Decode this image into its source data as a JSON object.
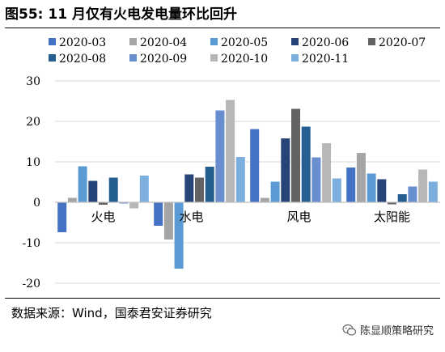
{
  "title": "图55: 11 月仅有火电发电量环比回升",
  "source": "数据来源：Wind，国泰君安证券研究",
  "watermark": "陈显顺策略研究",
  "colors": {
    "2020-03": "#4472C4",
    "2020-04": "#A5A5A5",
    "2020-05": "#5B9BD5",
    "2020-06": "#264478",
    "2020-07": "#636363",
    "2020-08": "#255E91",
    "2020-09": "#698ED0",
    "2020-10": "#B7B7B7",
    "2020-11": "#7CAFDD"
  },
  "chart_data": {
    "type": "bar",
    "categories": [
      "火电",
      "水电",
      "风电",
      "太阳能"
    ],
    "series": [
      {
        "name": "2020-03",
        "values": [
          -7.4,
          -5.8,
          18.1,
          8.6
        ]
      },
      {
        "name": "2020-04",
        "values": [
          1.1,
          -9.2,
          1.1,
          12.2
        ]
      },
      {
        "name": "2020-05",
        "values": [
          8.9,
          -16.4,
          5.1,
          7.1
        ]
      },
      {
        "name": "2020-06",
        "values": [
          5.3,
          6.9,
          15.8,
          5.7
        ]
      },
      {
        "name": "2020-07",
        "values": [
          -0.6,
          6.1,
          23.1,
          -0.5
        ]
      },
      {
        "name": "2020-08",
        "values": [
          6.1,
          8.8,
          18.7,
          2.0
        ]
      },
      {
        "name": "2020-09",
        "values": [
          -0.3,
          22.7,
          11.1,
          3.9
        ]
      },
      {
        "name": "2020-10",
        "values": [
          -1.5,
          25.3,
          14.6,
          8.1
        ]
      },
      {
        "name": "2020-11",
        "values": [
          6.6,
          11.2,
          5.9,
          5.1
        ]
      }
    ],
    "ylim": [
      -20,
      30
    ],
    "yticks": [
      30,
      20,
      10,
      0,
      -10,
      -20
    ],
    "grid": true,
    "legend_position": "top"
  }
}
